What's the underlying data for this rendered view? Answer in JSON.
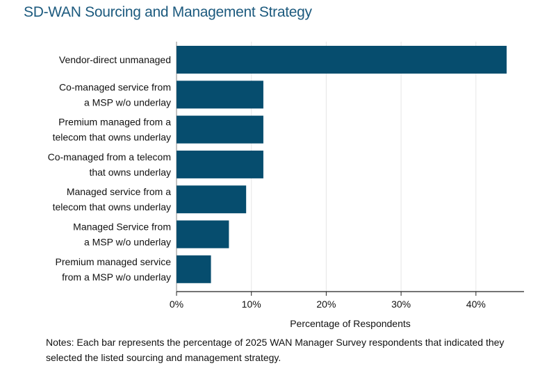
{
  "title": "SD-WAN Sourcing and Management Strategy",
  "chart_data": {
    "type": "bar",
    "orientation": "horizontal",
    "categories": [
      [
        "Vendor-direct unmanaged"
      ],
      [
        "Co-managed service from",
        "a MSP w/o underlay"
      ],
      [
        "Premium managed from a",
        "telecom that owns underlay"
      ],
      [
        "Co-managed from a telecom",
        "that owns underlay"
      ],
      [
        "Managed service from a",
        "telecom that owns underlay"
      ],
      [
        "Managed Service from",
        "a MSP w/o underlay"
      ],
      [
        "Premium managed service",
        "from a MSP w/o underlay"
      ]
    ],
    "values": [
      44.1,
      11.6,
      11.6,
      11.6,
      9.3,
      7.0,
      4.6
    ],
    "xlabel": "Percentage of Respondents",
    "ylabel": "",
    "xlim": [
      0,
      46.5
    ],
    "xticks": [
      0,
      10,
      20,
      30,
      40
    ],
    "xtick_labels": [
      "0%",
      "10%",
      "20%",
      "30%",
      "40%"
    ],
    "grid": true,
    "bar_color": "#064d6e",
    "grid_color": "#e6e6e6"
  },
  "notes": "Notes: Each bar represents the percentage of 2025 WAN Manager Survey respondents that indicated they selected the listed sourcing and management strategy."
}
